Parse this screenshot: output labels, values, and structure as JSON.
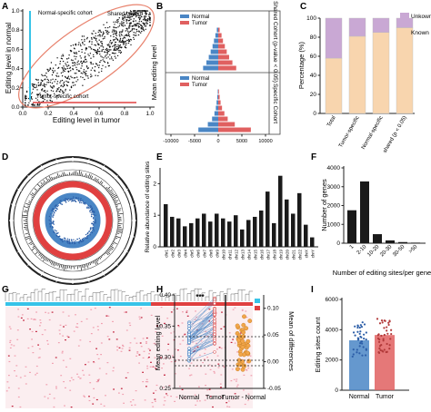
{
  "colors": {
    "normal": "#4a86c5",
    "tumor": "#e06060",
    "unknown": "#c9a8d4",
    "known": "#f8d5ae",
    "bar_black": "#1a1a1a",
    "cohort_ring": "#e8826d",
    "cyan": "#37c3e8",
    "red": "#e04040"
  },
  "panels": [
    {
      "letter": "A"
    },
    {
      "letter": "B"
    },
    {
      "letter": "C"
    },
    {
      "letter": "D"
    },
    {
      "letter": "E"
    },
    {
      "letter": "F"
    },
    {
      "letter": "G"
    },
    {
      "letter": "H"
    },
    {
      "letter": "I"
    }
  ],
  "chart_data": [
    {
      "panel": "A",
      "type": "scatter",
      "xlabel": "Editing level in tumor",
      "ylabel": "Editing level in normal",
      "xlim": [
        0,
        1
      ],
      "ylim": [
        0,
        1
      ],
      "xticks": [
        "0.0",
        "0.2",
        "0.4",
        "0.6",
        "0.8",
        "1.0"
      ],
      "yticks": [
        "0.0",
        "0.2",
        "0.4",
        "0.6",
        "0.8",
        "1.0"
      ],
      "annotations": [
        "Normal-specific cohort",
        "Shared cohort",
        "Tumor-specific cohort"
      ],
      "series": [
        {
          "name": "Shared cohort",
          "x_range": [
            0.02,
            1.0
          ],
          "y_range": [
            0.02,
            1.0
          ]
        },
        {
          "name": "Normal-specific cohort",
          "x": [
            0.0
          ],
          "y_range": [
            0.05,
            0.9
          ]
        },
        {
          "name": "Tumor-specific cohort",
          "x_range": [
            0.02,
            0.9
          ],
          "y": [
            0.0
          ]
        }
      ]
    },
    {
      "panel": "B",
      "type": "bar",
      "ylabel": "Mean editing level",
      "xticks": [
        "-10000",
        "-5000",
        "0",
        "5000",
        "10000"
      ],
      "groups": [
        {
          "name": "Shared Cohort (p-value < 0.05)",
          "series": [
            {
              "name": "Normal",
              "values": [
                300,
                600,
                900,
                1200,
                1600,
                2000,
                2500,
                3200
              ]
            },
            {
              "name": "Tumor",
              "values": [
                300,
                700,
                1000,
                1400,
                1800,
                2300,
                3000,
                3800
              ]
            }
          ]
        },
        {
          "name": "Specific Cohort",
          "series": [
            {
              "name": "Normal",
              "values": [
                100,
                200,
                350,
                500,
                800,
                1300,
                2200,
                4200
              ]
            },
            {
              "name": "Tumor",
              "values": [
                150,
                300,
                500,
                800,
                1300,
                2000,
                3500,
                6900
              ]
            }
          ]
        }
      ]
    },
    {
      "panel": "C",
      "type": "bar",
      "stacked": true,
      "ylabel": "Percentage (%)",
      "ylim": [
        0,
        100
      ],
      "yticks": [
        "0",
        "20",
        "40",
        "60",
        "80",
        "100"
      ],
      "categories": [
        "Total",
        "Tumor-specific",
        "Normal-specific",
        "shared (p < 0.05)"
      ],
      "series": [
        {
          "name": "Known",
          "values": [
            58,
            81,
            85,
            90
          ]
        },
        {
          "name": "Unkown",
          "values": [
            42,
            19,
            15,
            10
          ]
        }
      ]
    },
    {
      "panel": "D",
      "type": "other",
      "description": "circos plot"
    },
    {
      "panel": "E",
      "type": "bar",
      "ylabel": "Relative abundance of editing sites",
      "ylim": [
        0,
        2.5
      ],
      "yticks": [
        "0",
        "1",
        "2"
      ],
      "categories": [
        "chr1",
        "chr2",
        "chr3",
        "chr4",
        "chr5",
        "chr6",
        "chr7",
        "chr8",
        "chr9",
        "chr10",
        "chr11",
        "chr12",
        "chr13",
        "chr14",
        "chr15",
        "chr16",
        "chr17",
        "chr18",
        "chr19",
        "chr20",
        "chr21",
        "chr22",
        "chrX",
        "chrY"
      ],
      "values": [
        1.35,
        0.95,
        0.9,
        0.65,
        0.75,
        0.9,
        1.05,
        0.8,
        1.05,
        0.9,
        0.8,
        1.0,
        0.55,
        0.85,
        0.95,
        1.15,
        1.75,
        0.75,
        2.25,
        1.5,
        1.05,
        1.7,
        0.7,
        0.3
      ]
    },
    {
      "panel": "F",
      "type": "bar",
      "xlabel": "Number of editing sites/per gene",
      "ylabel": "Number of genes",
      "ylim": [
        0,
        4000
      ],
      "yticks": [
        "0",
        "1000",
        "2000",
        "3000",
        "4000"
      ],
      "categories": [
        "1",
        "2-10",
        "10-20",
        "20-30",
        "30-50",
        ">50"
      ],
      "values": [
        1750,
        3280,
        480,
        150,
        60,
        30
      ]
    },
    {
      "panel": "G",
      "type": "heatmap",
      "legend_title": "Tissue_list",
      "legend": [
        "Normal",
        "Tumor"
      ]
    },
    {
      "panel": "H",
      "type": "scatter",
      "ylabel": "Mean editing level",
      "y2label": "Mean of differences",
      "ylim": [
        0.25,
        0.4
      ],
      "yticks": [
        "0.25",
        "0.30",
        "0.35",
        "0.40"
      ],
      "y2ticks": [
        "-0.05",
        "0.00",
        "0.05",
        "0.10"
      ],
      "categories": [
        "Normal",
        "Tumor",
        "Tumor - Normal"
      ],
      "significance": "***",
      "series": [
        {
          "name": "Normal",
          "mean": 0.31,
          "range": [
            0.29,
            0.36
          ]
        },
        {
          "name": "Tumor",
          "mean": 0.34,
          "range": [
            0.3,
            0.39
          ]
        },
        {
          "name": "Tumor - Normal",
          "mean": 0.03,
          "range": [
            -0.02,
            0.09
          ]
        }
      ]
    },
    {
      "panel": "I",
      "type": "bar",
      "ylabel": "Editing sites count",
      "ylim": [
        0,
        6000
      ],
      "yticks": [
        "0",
        "2000",
        "4000",
        "6000"
      ],
      "categories": [
        "Normal",
        "Tumor"
      ],
      "values": [
        3300,
        3650
      ]
    }
  ]
}
